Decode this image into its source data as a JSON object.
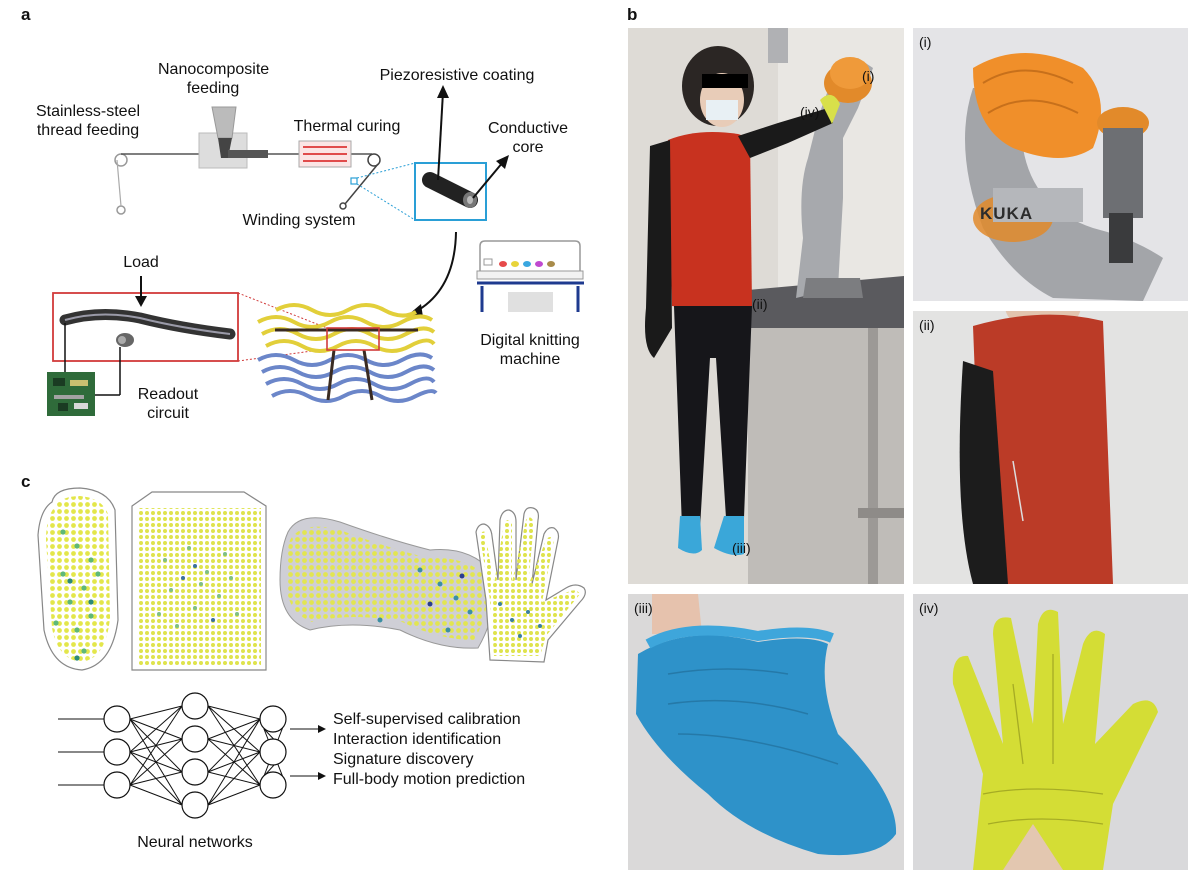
{
  "panels": {
    "a": "a",
    "b": "b",
    "c": "c"
  },
  "panel_a": {
    "stainless": [
      "Stainless-steel",
      "thread feeding"
    ],
    "nanocomposite": [
      "Nanocomposite",
      "feeding"
    ],
    "thermal": "Thermal curing",
    "piezo": "Piezoresistive coating",
    "conductive": [
      "Conductive",
      "core"
    ],
    "winding": "Winding system",
    "load": "Load",
    "readout": [
      "Readout",
      "circuit"
    ],
    "knitting": [
      "Digital knitting",
      "machine"
    ]
  },
  "panel_b": {
    "main_labels": {
      "i": "(i)",
      "ii": "(ii)",
      "iii": "(iii)",
      "iv": "(iv)"
    },
    "sub_labels": {
      "i": "(i)",
      "ii": "(ii)",
      "iii": "(iii)",
      "iv": "(iv)"
    },
    "robot_brand": "KUKA"
  },
  "panel_c": {
    "outputs": [
      "Self-supervised calibration",
      "Interaction identification",
      "Signature discovery",
      "Full-body motion prediction"
    ],
    "network_label": "Neural networks"
  }
}
